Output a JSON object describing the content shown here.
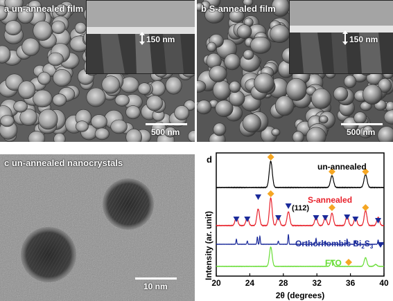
{
  "panels": {
    "a": {
      "letter": "a",
      "title": "un-annealed film",
      "inset_thickness": "150 nm",
      "scalebar": "500 nm"
    },
    "b": {
      "letter": "b",
      "title": "S-annealed film",
      "inset_thickness": "150 nm",
      "scalebar": "500 nm"
    },
    "c": {
      "letter": "c",
      "title": "un-annealed nanocrystals",
      "scalebar": "10 nm"
    },
    "d": {
      "letter": "d"
    }
  },
  "chart_data": {
    "type": "line",
    "xlabel": "2θ (degrees)",
    "ylabel": "Intensity (ar. unit)",
    "xlim": [
      20,
      40
    ],
    "x_ticks": [
      20,
      24,
      28,
      32,
      36,
      40
    ],
    "colors": {
      "un-annealed": "#000000",
      "s-annealed": "#e8202a",
      "orthorhombic": "#1a2a9a",
      "fto": "#66dd33",
      "diamond": "#f5a623"
    },
    "series": [
      {
        "name": "un-annealed",
        "peaks": [
          26.5,
          33.8,
          37.8
        ],
        "heights": [
          1.0,
          0.45,
          0.5
        ]
      },
      {
        "name": "S-annealed",
        "peaks": [
          22.4,
          23.7,
          25.0,
          26.5,
          27.4,
          28.6,
          31.9,
          33.0,
          33.8,
          35.6,
          36.6,
          37.8,
          39.3
        ],
        "heights": [
          0.3,
          0.3,
          0.6,
          1.0,
          0.35,
          0.5,
          0.3,
          0.3,
          0.45,
          0.35,
          0.3,
          0.55,
          0.3
        ]
      },
      {
        "name": "Orthorhombic Bi2S3",
        "peaks": [
          22.4,
          23.7,
          24.9,
          25.2,
          27.4,
          28.6,
          31.9,
          33.0,
          35.6,
          36.6,
          39.3
        ],
        "heights": [
          0.3,
          0.2,
          0.45,
          0.5,
          0.2,
          0.6,
          0.35,
          0.2,
          0.3,
          0.2,
          0.25
        ]
      },
      {
        "name": "FTO",
        "peaks": [
          26.5,
          33.8,
          37.8,
          39.0
        ],
        "heights": [
          1.0,
          0.3,
          0.45,
          0.1
        ]
      }
    ],
    "annotations": {
      "un_annealed_label": "un-annealed",
      "s_annealed_label": "S-annealed",
      "peak_112": "(112)",
      "ortho_prefix": "Orthorhombic Bi",
      "ortho_sub1": "2",
      "ortho_mid": "S",
      "ortho_sub2": "3",
      "fto_label": "FTO",
      "diamond_peaks": [
        26.5,
        33.8,
        37.8
      ],
      "triangle_peaks": [
        22.4,
        23.7,
        25.0,
        27.4,
        28.6,
        31.9,
        33.0,
        35.6,
        36.6,
        39.3
      ]
    }
  }
}
